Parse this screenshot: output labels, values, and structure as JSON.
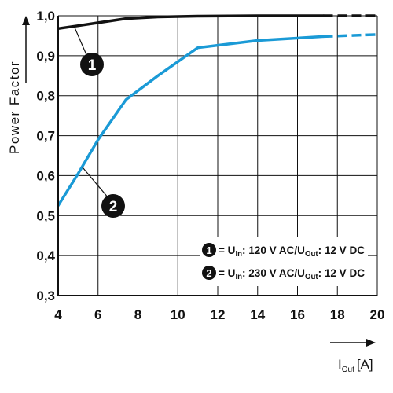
{
  "chart_data": {
    "type": "line",
    "ylabel": "Power Factor",
    "xlabel": "I",
    "xlabel_sub": "Out",
    "xlabel_unit": "[A]",
    "xlim": [
      4,
      20
    ],
    "ylim": [
      0.3,
      1.0
    ],
    "xticks": [
      4,
      6,
      8,
      10,
      12,
      14,
      16,
      18,
      20
    ],
    "xtick_labels": [
      "4",
      "6",
      "8",
      "10",
      "12",
      "14",
      "16",
      "18",
      "20"
    ],
    "yticks": [
      0.3,
      0.4,
      0.5,
      0.6,
      0.7,
      0.8,
      0.9,
      1.0
    ],
    "ytick_labels": [
      "0,3",
      "0,4",
      "0,5",
      "0,6",
      "0,7",
      "0,8",
      "0,9",
      "1,0"
    ],
    "grid": true,
    "legend_position": "bottom-right",
    "series": [
      {
        "name": "1",
        "color": "#111111",
        "dashed_from_x": 17.3,
        "x": [
          4,
          5,
          7.4,
          9,
          11,
          14,
          17.3,
          20
        ],
        "y": [
          0.968,
          0.975,
          0.993,
          0.997,
          0.999,
          1.0,
          1.0,
          1.0
        ]
      },
      {
        "name": "2",
        "color": "#1a9ad6",
        "dashed_from_x": 17.3,
        "x": [
          4,
          5,
          6,
          7.4,
          9,
          11,
          14,
          17.3,
          20
        ],
        "y": [
          0.525,
          0.605,
          0.69,
          0.79,
          0.85,
          0.92,
          0.938,
          0.948,
          0.953
        ]
      }
    ],
    "legend": [
      {
        "marker": "1",
        "text_a": "= U",
        "sub_a": "In",
        "text_b": ": 120 V AC/U",
        "sub_b": "Out",
        "text_c": ": 12 V DC"
      },
      {
        "marker": "2",
        "text_a": "= U",
        "sub_a": "In",
        "text_b": ": 230 V AC/U",
        "sub_b": "Out",
        "text_c": ": 12 V DC"
      }
    ]
  }
}
